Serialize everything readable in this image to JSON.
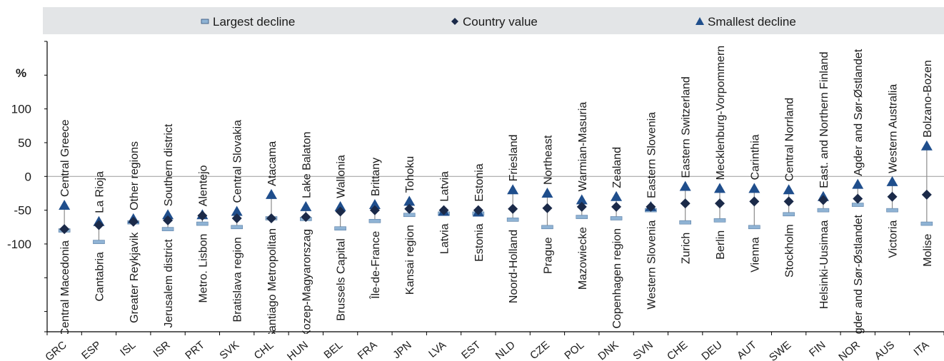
{
  "chart_data": {
    "type": "scatter",
    "ylabel": "%",
    "ylim": [
      -230,
      200
    ],
    "yticks": [
      100,
      50,
      0,
      -50,
      -100
    ],
    "legend": {
      "position": "top",
      "items": [
        {
          "key": "largest",
          "label": "Largest decline"
        },
        {
          "key": "country",
          "label": "Country value"
        },
        {
          "key": "smallest",
          "label": "Smallest decline"
        }
      ]
    },
    "colors": {
      "range_line": "#8c8c8c",
      "largest_marker": "#8fb3d4",
      "country_marker": "#1b2a49",
      "smallest_marker": "#1f4e8c",
      "legend_band": "#e3e5e7",
      "axis": "#000000",
      "grid_zero": "#9a9a9a"
    },
    "categories": [
      "GRC",
      "ESP",
      "ISL",
      "ISR",
      "PRT",
      "SVK",
      "CHL",
      "HUN",
      "BEL",
      "FRA",
      "JPN",
      "LVA",
      "EST",
      "NLD",
      "CZE",
      "POL",
      "DNK",
      "SVN",
      "CHE",
      "DEU",
      "AUT",
      "SWE",
      "FIN",
      "NOR",
      "AUS",
      "ITA"
    ],
    "series": [
      {
        "name": "Largest decline",
        "values": [
          -80,
          -97,
          -68,
          -78,
          -70,
          -75,
          -62,
          -63,
          -77,
          -66,
          -57,
          -55,
          -55,
          -64,
          -75,
          -60,
          -62,
          -50,
          -68,
          -65,
          -75,
          -56,
          -50,
          -42,
          -50,
          -70
        ]
      },
      {
        "name": "Country value",
        "values": [
          -78,
          -72,
          -67,
          -65,
          -58,
          -62,
          -62,
          -60,
          -52,
          -50,
          -48,
          -50,
          -50,
          -48,
          -47,
          -45,
          -45,
          -45,
          -40,
          -40,
          -37,
          -37,
          -35,
          -33,
          -30,
          -27
        ]
      },
      {
        "name": "Smallest decline",
        "values": [
          -43,
          -67,
          -63,
          -57,
          -57,
          -52,
          -27,
          -45,
          -45,
          -42,
          -37,
          -52,
          -53,
          -20,
          -25,
          -35,
          -30,
          -45,
          -15,
          -18,
          -18,
          -20,
          -30,
          -12,
          -8,
          45
        ]
      }
    ],
    "regions_top": [
      "Central Greece",
      "La Rioja",
      "Other regions",
      "Southern district",
      "Alentejo",
      "Central Slovakia",
      "Atacama",
      "Lake Balaton",
      "Wallonia",
      "Brittany",
      "Tohoku",
      "Latvia",
      "Estonia",
      "Friesland",
      "Northeast",
      "Warmian-Masuria",
      "Zealand",
      "Eastern Slovenia",
      "Eastern Switzerland",
      "Mecklenburg-Vorpommern",
      "Carinthia",
      "Central Norrland",
      "East. and Northern Finland",
      "Agder and Sør-Østlandet",
      "Western Australia",
      "Bolzano-Bozen"
    ],
    "regions_bottom": [
      "Central Macedonia",
      "Cantabria",
      "Greater Reykjavik",
      "Jerusalem district",
      "Metro. Lisbon",
      "Bratislava region",
      "Santiago Metropolitan",
      "Kozep-Magyarorszag",
      "Brussels Capital",
      "Île-de-France",
      "Kansai region",
      "Latvia",
      "Estonia",
      "Noord-Holland",
      "Prague",
      "Mazowiecke",
      "Copenhagen region",
      "Western Slovenia",
      "Zurich",
      "Berlin",
      "Vienna",
      "Stockholm",
      "Helsinki-Uusimaa",
      "Agder and Sør-Østlandet",
      "Victoria",
      "Molise"
    ]
  }
}
